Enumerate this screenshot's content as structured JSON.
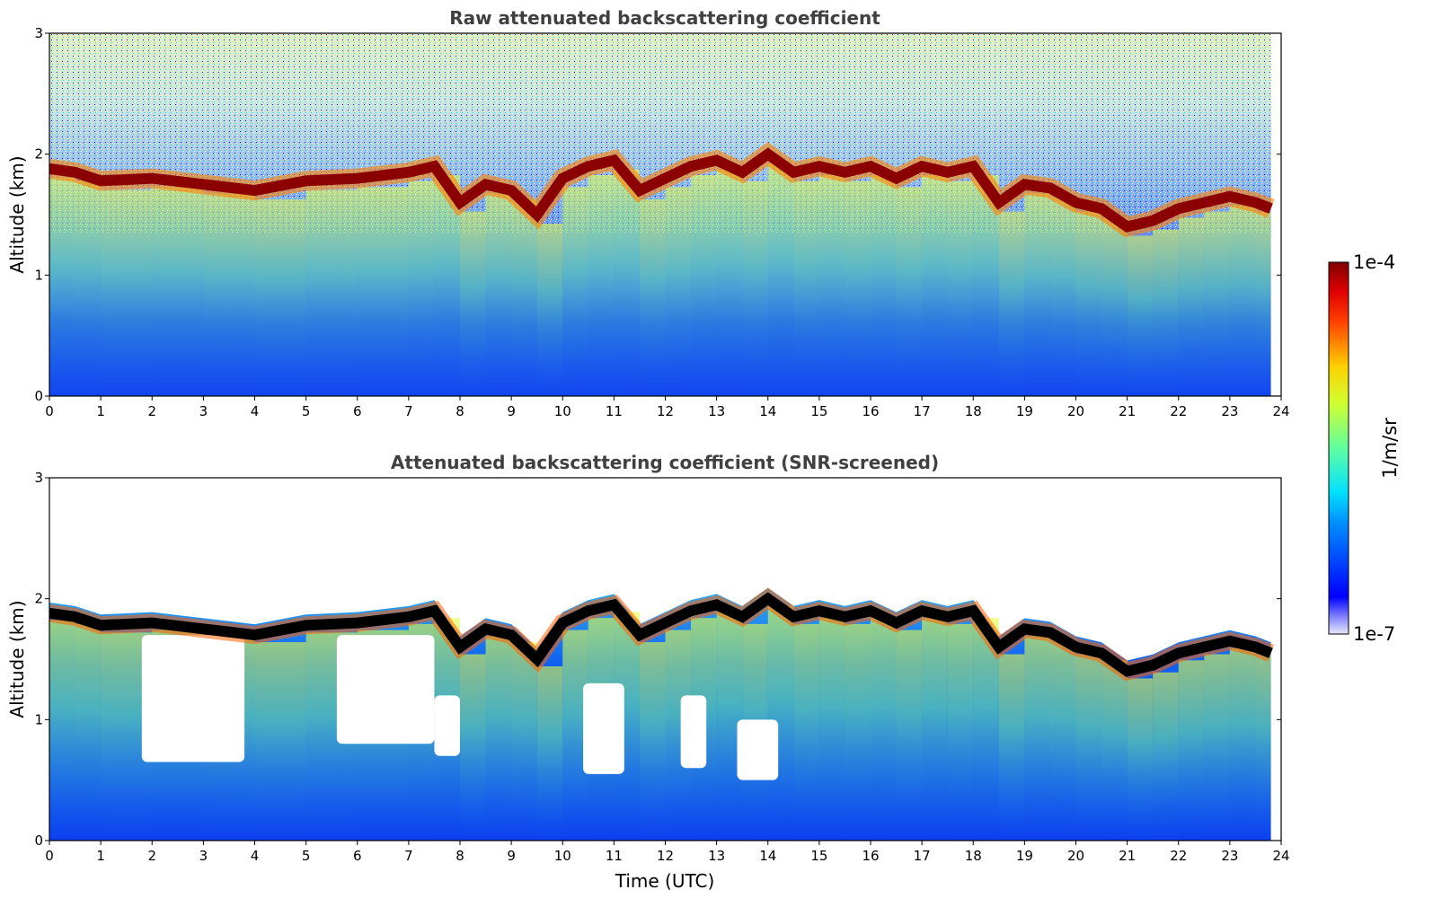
{
  "chart_data": [
    {
      "type": "heatmap",
      "title": "Raw attenuated backscattering coefficient",
      "xlabel": "",
      "ylabel": "Altitude (km)",
      "xlim": [
        0,
        24
      ],
      "ylim": [
        0,
        3
      ],
      "x_ticks": [
        "0",
        "1",
        "2",
        "3",
        "4",
        "5",
        "6",
        "7",
        "8",
        "9",
        "10",
        "11",
        "12",
        "13",
        "14",
        "15",
        "16",
        "17",
        "18",
        "19",
        "20",
        "21",
        "22",
        "23",
        "24"
      ],
      "y_ticks": [
        "0",
        "1",
        "2",
        "3"
      ],
      "data_extent_x": [
        0,
        23.8
      ],
      "cloud_base_profile": {
        "x": [
          0,
          0.5,
          1,
          2,
          3,
          4,
          5,
          6,
          7,
          7.5,
          8,
          8.5,
          9,
          9.5,
          10,
          10.5,
          11,
          11.5,
          12,
          12.5,
          13,
          13.5,
          14,
          14.5,
          15,
          15.5,
          16,
          16.5,
          17,
          17.5,
          18,
          18.5,
          19,
          19.5,
          20,
          20.5,
          21,
          21.5,
          22,
          22.5,
          23,
          23.5,
          23.8
        ],
        "y": [
          1.88,
          1.85,
          1.78,
          1.8,
          1.75,
          1.7,
          1.78,
          1.8,
          1.85,
          1.9,
          1.6,
          1.75,
          1.7,
          1.5,
          1.8,
          1.9,
          1.95,
          1.7,
          1.8,
          1.9,
          1.95,
          1.85,
          2.0,
          1.85,
          1.9,
          1.85,
          1.9,
          1.8,
          1.9,
          1.85,
          1.9,
          1.6,
          1.75,
          1.72,
          1.6,
          1.55,
          1.4,
          1.45,
          1.55,
          1.6,
          1.65,
          1.6,
          1.55
        ]
      }
    },
    {
      "type": "heatmap",
      "title": "Attenuated backscattering coefficient (SNR-screened)",
      "xlabel": "Time (UTC)",
      "ylabel": "Altitude (km)",
      "xlim": [
        0,
        24
      ],
      "ylim": [
        0,
        3
      ],
      "x_ticks": [
        "0",
        "1",
        "2",
        "3",
        "4",
        "5",
        "6",
        "7",
        "8",
        "9",
        "10",
        "11",
        "12",
        "13",
        "14",
        "15",
        "16",
        "17",
        "18",
        "19",
        "20",
        "21",
        "22",
        "23",
        "24"
      ],
      "y_ticks": [
        "0",
        "1",
        "2",
        "3"
      ],
      "data_extent_x": [
        0,
        23.8
      ],
      "screened_regions": [
        {
          "x": [
            1.8,
            3.8
          ],
          "y": [
            0.65,
            1.7
          ]
        },
        {
          "x": [
            5.6,
            7.5
          ],
          "y": [
            0.8,
            1.7
          ]
        },
        {
          "x": [
            7.5,
            8.0
          ],
          "y": [
            0.7,
            1.2
          ]
        },
        {
          "x": [
            10.4,
            11.2
          ],
          "y": [
            0.55,
            1.3
          ]
        },
        {
          "x": [
            12.3,
            12.8
          ],
          "y": [
            0.6,
            1.2
          ]
        },
        {
          "x": [
            13.4,
            14.2
          ],
          "y": [
            0.5,
            1.0
          ]
        }
      ]
    }
  ],
  "colorbar": {
    "label": "1/m/sr",
    "max_label": "1e-4",
    "min_label": "1e-7",
    "colormap": "jet",
    "scale": "log",
    "range": [
      1e-07,
      0.0001
    ]
  }
}
